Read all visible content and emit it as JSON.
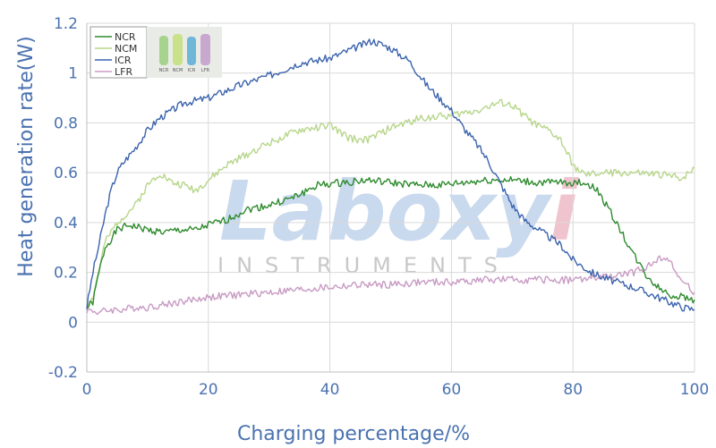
{
  "chart_data": {
    "type": "line",
    "title": "",
    "xlabel": "Charging percentage/%",
    "ylabel": "Heat generation rate(W)",
    "xlim": [
      0,
      100
    ],
    "ylim": [
      -0.2,
      1.2
    ],
    "x_ticks": [
      "0",
      "20",
      "40",
      "60",
      "80",
      "100"
    ],
    "x_tick_values": [
      0,
      20,
      40,
      60,
      80,
      100
    ],
    "y_ticks": [
      "1.2",
      "1",
      "0.8",
      "0.6",
      "0.4",
      "0.2",
      "0",
      "-0.2"
    ],
    "y_tick_values": [
      1.2,
      1,
      0.8,
      0.6,
      0.4,
      0.2,
      0,
      -0.2
    ],
    "grid": true,
    "legend_position": "top-left",
    "legend_image_labels": [
      "NCR",
      "NCM",
      "ICR",
      "LFR"
    ],
    "watermark": {
      "logo": "Laboxyi",
      "subtitle": "INSTRUMENTS"
    },
    "series": [
      {
        "name": "NCR",
        "color": "#2e8b2e",
        "x": [
          0,
          1,
          2,
          3,
          5,
          7,
          10,
          13,
          15,
          18,
          20,
          23,
          26,
          30,
          34,
          38,
          42,
          46,
          50,
          54,
          58,
          62,
          66,
          70,
          74,
          78,
          82,
          84,
          86,
          88,
          90,
          92,
          94,
          96,
          98,
          100
        ],
        "y": [
          0.06,
          0.08,
          0.2,
          0.3,
          0.37,
          0.39,
          0.37,
          0.36,
          0.37,
          0.37,
          0.39,
          0.41,
          0.45,
          0.47,
          0.5,
          0.55,
          0.56,
          0.57,
          0.56,
          0.55,
          0.55,
          0.56,
          0.57,
          0.57,
          0.56,
          0.56,
          0.56,
          0.53,
          0.45,
          0.36,
          0.27,
          0.19,
          0.14,
          0.11,
          0.1,
          0.09
        ]
      },
      {
        "name": "NCM",
        "color": "#b7d68a",
        "x": [
          0,
          1,
          3,
          5,
          8,
          10,
          12,
          14,
          16,
          18,
          20,
          23,
          26,
          30,
          35,
          40,
          43,
          46,
          50,
          55,
          60,
          64,
          68,
          70,
          72,
          74,
          76,
          78,
          80,
          82,
          85,
          90,
          95,
          98,
          100
        ],
        "y": [
          0.06,
          0.1,
          0.32,
          0.4,
          0.47,
          0.55,
          0.6,
          0.56,
          0.55,
          0.53,
          0.57,
          0.63,
          0.67,
          0.72,
          0.77,
          0.79,
          0.74,
          0.73,
          0.78,
          0.82,
          0.83,
          0.85,
          0.88,
          0.87,
          0.83,
          0.79,
          0.77,
          0.73,
          0.63,
          0.59,
          0.6,
          0.6,
          0.59,
          0.58,
          0.62
        ]
      },
      {
        "name": "ICR",
        "color": "#3b63ad",
        "x": [
          0,
          1,
          2,
          3,
          4,
          5,
          6,
          8,
          10,
          12,
          14,
          16,
          18,
          20,
          25,
          30,
          35,
          40,
          44,
          47,
          50,
          53,
          56,
          60,
          62,
          64,
          66,
          68,
          70,
          72,
          75,
          78,
          80,
          83,
          86,
          90,
          93,
          96,
          98,
          100
        ],
        "y": [
          0.06,
          0.2,
          0.31,
          0.43,
          0.53,
          0.6,
          0.64,
          0.7,
          0.77,
          0.82,
          0.85,
          0.88,
          0.89,
          0.9,
          0.95,
          0.99,
          1.04,
          1.06,
          1.1,
          1.13,
          1.1,
          1.05,
          0.95,
          0.85,
          0.78,
          0.72,
          0.65,
          0.56,
          0.47,
          0.41,
          0.36,
          0.31,
          0.25,
          0.2,
          0.17,
          0.14,
          0.11,
          0.08,
          0.06,
          0.05
        ]
      },
      {
        "name": "LFR",
        "color": "#c89bc4",
        "x": [
          0,
          2,
          4,
          6,
          8,
          10,
          15,
          20,
          25,
          30,
          35,
          40,
          45,
          50,
          55,
          60,
          65,
          70,
          75,
          80,
          85,
          88,
          90,
          92,
          94,
          95,
          96,
          97,
          98,
          100
        ],
        "y": [
          0.05,
          0.04,
          0.05,
          0.05,
          0.06,
          0.06,
          0.08,
          0.1,
          0.11,
          0.12,
          0.13,
          0.14,
          0.15,
          0.15,
          0.16,
          0.16,
          0.17,
          0.17,
          0.17,
          0.17,
          0.18,
          0.19,
          0.2,
          0.22,
          0.25,
          0.27,
          0.24,
          0.2,
          0.16,
          0.12
        ]
      }
    ]
  }
}
